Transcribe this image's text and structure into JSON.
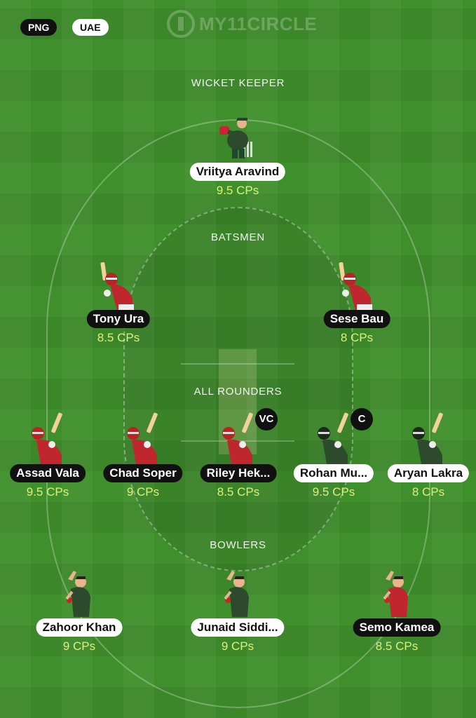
{
  "header": {
    "teams": [
      {
        "label": "PNG",
        "style": "dark"
      },
      {
        "label": "UAE",
        "style": "light"
      }
    ],
    "watermark": "MY11CIRCLE"
  },
  "colors": {
    "field": "#3f8f2c",
    "png_kit": "#c0262d",
    "uae_kit": "#2e4a2c",
    "points_text": "#d9f27a"
  },
  "sections": {
    "wicket_keeper": {
      "title": "WICKET KEEPER",
      "players": [
        {
          "name": "Vriitya Aravind",
          "points": "9.5 CPs",
          "team": "UAE",
          "pose": "keeper-icon"
        }
      ]
    },
    "batsmen": {
      "title": "BATSMEN",
      "players": [
        {
          "name": "Tony Ura",
          "points": "8.5 CPs",
          "team": "PNG",
          "pose": "batsman-icon"
        },
        {
          "name": "Sese Bau",
          "points": "8 CPs",
          "team": "PNG",
          "pose": "batsman-icon"
        }
      ]
    },
    "all_rounders": {
      "title": "ALL ROUNDERS",
      "players": [
        {
          "name": "Assad Vala",
          "points": "9.5 CPs",
          "team": "PNG",
          "pose": "allrounder-icon"
        },
        {
          "name": "Chad Soper",
          "points": "9 CPs",
          "team": "PNG",
          "pose": "allrounder-icon"
        },
        {
          "name": "Riley Hek...",
          "points": "8.5 CPs",
          "team": "PNG",
          "pose": "allrounder-icon",
          "badge": "VC"
        },
        {
          "name": "Rohan Mu...",
          "points": "9.5 CPs",
          "team": "UAE",
          "pose": "allrounder-icon",
          "badge": "C"
        },
        {
          "name": "Aryan Lakra",
          "points": "8 CPs",
          "team": "UAE",
          "pose": "allrounder-icon"
        }
      ]
    },
    "bowlers": {
      "title": "BOWLERS",
      "players": [
        {
          "name": "Zahoor Khan",
          "points": "9 CPs",
          "team": "UAE",
          "pose": "bowler-icon"
        },
        {
          "name": "Junaid Siddi...",
          "points": "9 CPs",
          "team": "UAE",
          "pose": "bowler-icon"
        },
        {
          "name": "Semo Kamea",
          "points": "8.5 CPs",
          "team": "PNG",
          "pose": "bowler-icon"
        }
      ]
    }
  }
}
